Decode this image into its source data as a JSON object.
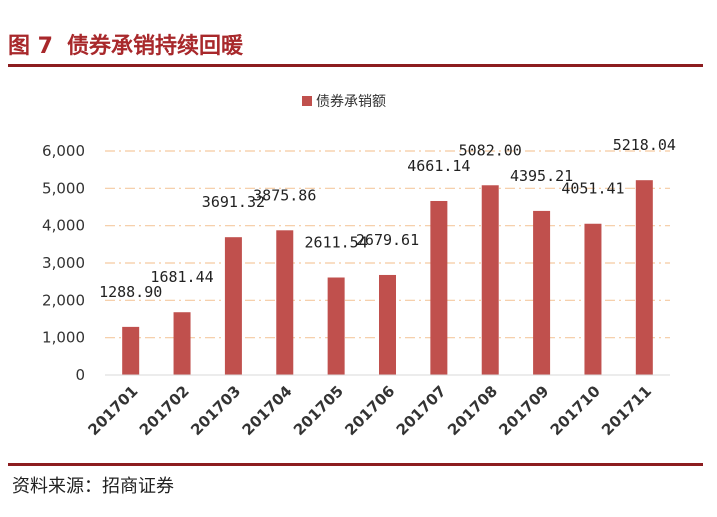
{
  "header": {
    "figure_number": "图 7",
    "title": "债券承销持续回暖"
  },
  "footer": {
    "source": "资料来源：招商证券"
  },
  "colors": {
    "bar": "#c0504d",
    "rule": "#8c1c1f",
    "title": "#a8282b",
    "grid": "#f5c9a0"
  },
  "chart_data": {
    "type": "bar",
    "title": "",
    "xlabel": "",
    "ylabel": "",
    "categories": [
      "201701",
      "201702",
      "201703",
      "201704",
      "201705",
      "201706",
      "201707",
      "201708",
      "201709",
      "201710",
      "201711"
    ],
    "series": [
      {
        "name": "债券承销额",
        "values": [
          1288.9,
          1681.44,
          3691.32,
          3875.86,
          2611.54,
          2679.61,
          4661.14,
          5082.0,
          4395.21,
          4051.41,
          5218.04
        ],
        "labels": [
          "1288.90",
          "1681.44",
          "3691.32",
          "3875.86",
          "2611.54",
          "2679.61",
          "4661.14",
          "5082.00",
          "4395.21",
          "4051.41",
          "5218.04"
        ]
      }
    ],
    "ylim": [
      0,
      6000
    ],
    "yticks": [
      "0",
      "1,000",
      "2,000",
      "3,000",
      "4,000",
      "5,000",
      "6,000"
    ],
    "grid": "dash-dot horizontal",
    "legend_position": "top-center"
  }
}
